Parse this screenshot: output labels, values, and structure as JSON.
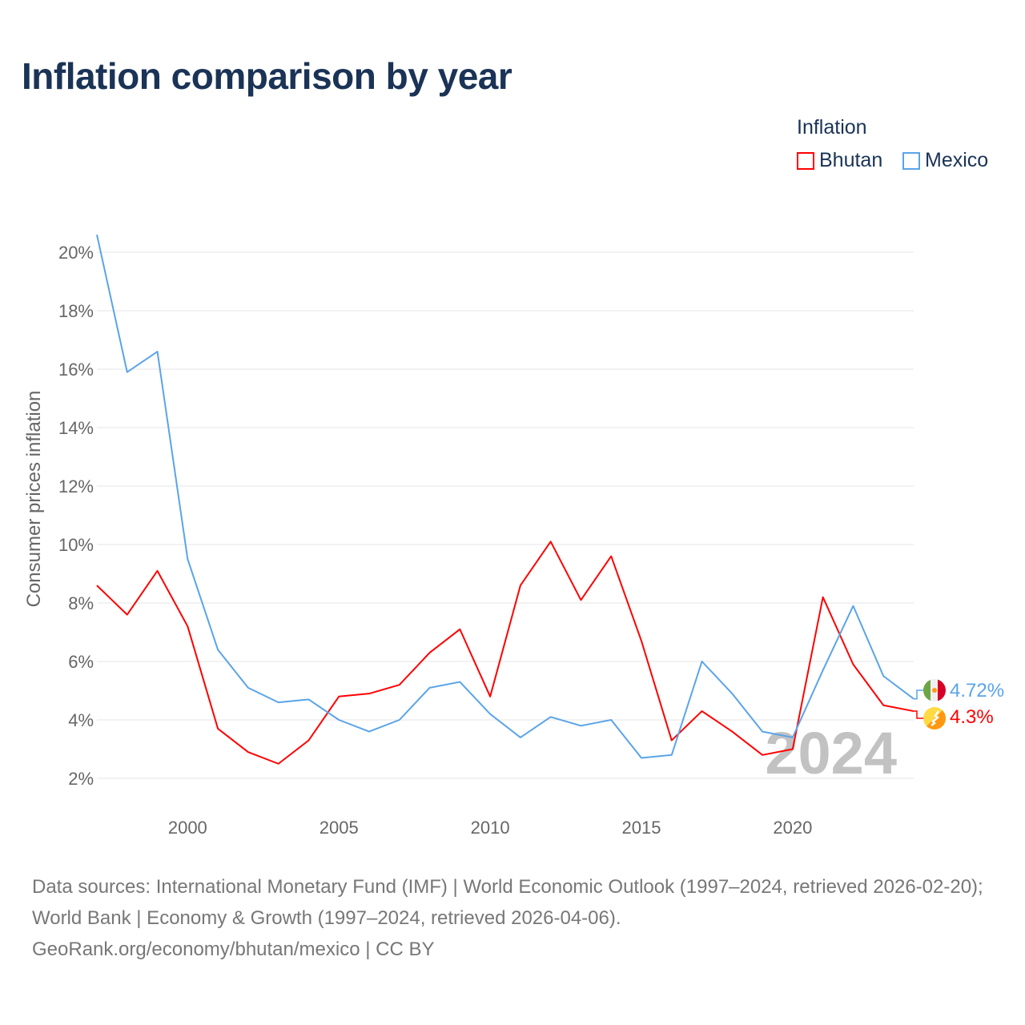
{
  "title": "Inflation comparison by year",
  "legend": {
    "title": "Inflation",
    "items": [
      {
        "name": "Bhutan",
        "color": "#ff0000"
      },
      {
        "name": "Mexico",
        "color": "#5aa4e8"
      }
    ]
  },
  "watermark_year": "2024",
  "end_labels": {
    "mexico": "4.72%",
    "bhutan": "4.3%"
  },
  "footer": {
    "line1": "Data sources: International Monetary Fund (IMF) | World Economic Outlook (1997–2024, retrieved 2026-02-20); World Bank | Economy & Growth (1997–2024, retrieved 2026-04-06).",
    "line2": "GeoRank.org/economy/bhutan/mexico | CC BY"
  },
  "chart_data": {
    "type": "line",
    "title": "Inflation comparison by year",
    "xlabel": "",
    "ylabel": "Consumer prices inflation",
    "xlim": [
      1997,
      2024
    ],
    "ylim": [
      0.8,
      20.6
    ],
    "yticks": [
      2,
      4,
      6,
      8,
      10,
      12,
      14,
      16,
      18,
      20
    ],
    "ytick_labels": [
      "2%",
      "4%",
      "6%",
      "8%",
      "10%",
      "12%",
      "14%",
      "16%",
      "18%",
      "20%"
    ],
    "xticks": [
      2000,
      2005,
      2010,
      2015,
      2020
    ],
    "xtick_labels": [
      "2000",
      "2005",
      "2010",
      "2015",
      "2020"
    ],
    "grid": true,
    "legend_position": "top-right",
    "x": [
      1997,
      1998,
      1999,
      2000,
      2001,
      2002,
      2003,
      2004,
      2005,
      2006,
      2007,
      2008,
      2009,
      2010,
      2011,
      2012,
      2013,
      2014,
      2015,
      2016,
      2017,
      2018,
      2019,
      2020,
      2021,
      2022,
      2023,
      2024
    ],
    "series": [
      {
        "name": "Bhutan",
        "color": "#ff0000",
        "values": [
          8.6,
          7.6,
          9.1,
          7.2,
          3.7,
          2.9,
          2.5,
          3.3,
          4.8,
          4.9,
          5.2,
          6.3,
          7.1,
          4.8,
          8.6,
          10.1,
          8.1,
          9.6,
          6.7,
          3.3,
          4.3,
          3.6,
          2.8,
          3.0,
          8.2,
          5.9,
          4.5,
          4.3
        ]
      },
      {
        "name": "Mexico",
        "color": "#5aa4e8",
        "values": [
          20.6,
          15.9,
          16.6,
          9.5,
          6.4,
          5.1,
          4.6,
          4.7,
          4.0,
          3.6,
          4.0,
          5.1,
          5.3,
          4.2,
          3.4,
          4.1,
          3.8,
          4.0,
          2.7,
          2.8,
          6.0,
          4.9,
          3.6,
          3.4,
          5.7,
          7.9,
          5.5,
          4.72
        ]
      }
    ]
  }
}
